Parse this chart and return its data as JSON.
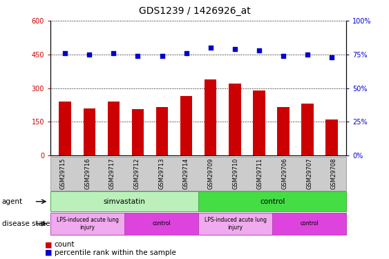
{
  "title": "GDS1239 / 1426926_at",
  "samples": [
    "GSM29715",
    "GSM29716",
    "GSM29717",
    "GSM29712",
    "GSM29713",
    "GSM29714",
    "GSM29709",
    "GSM29710",
    "GSM29711",
    "GSM29706",
    "GSM29707",
    "GSM29708"
  ],
  "counts": [
    240,
    210,
    240,
    205,
    215,
    265,
    340,
    320,
    290,
    215,
    230,
    160
  ],
  "percentiles": [
    76,
    75,
    76,
    74,
    74,
    76,
    80,
    79,
    78,
    74,
    75,
    73
  ],
  "bar_color": "#cc0000",
  "dot_color": "#0000cc",
  "ylim_left": [
    0,
    600
  ],
  "ylim_right": [
    0,
    100
  ],
  "yticks_left": [
    0,
    150,
    300,
    450,
    600
  ],
  "yticks_right": [
    0,
    25,
    50,
    75,
    100
  ],
  "ytick_labels_left": [
    "0",
    "150",
    "300",
    "450",
    "600"
  ],
  "ytick_labels_right": [
    "0%",
    "25%",
    "50%",
    "75%",
    "100%"
  ],
  "agent_groups": [
    {
      "label": "simvastatin",
      "start": 0,
      "end": 6,
      "color": "#bbf0bb",
      "border": "#44aa44"
    },
    {
      "label": "control",
      "start": 6,
      "end": 12,
      "color": "#44dd44",
      "border": "#44aa44"
    }
  ],
  "disease_groups": [
    {
      "label": "LPS-induced acute lung\ninjury",
      "start": 0,
      "end": 3,
      "color": "#f0aaee",
      "border": "#bb44bb"
    },
    {
      "label": "control",
      "start": 3,
      "end": 6,
      "color": "#dd44dd",
      "border": "#bb44bb"
    },
    {
      "label": "LPS-induced acute lung\ninjury",
      "start": 6,
      "end": 9,
      "color": "#f0aaee",
      "border": "#bb44bb"
    },
    {
      "label": "control",
      "start": 9,
      "end": 12,
      "color": "#dd44dd",
      "border": "#bb44bb"
    }
  ],
  "agent_label": "agent",
  "disease_label": "disease state",
  "legend_count": "count",
  "legend_percentile": "percentile rank within the sample",
  "tick_label_color_left": "#cc0000",
  "tick_label_color_right": "#0000cc",
  "gray_bg": "#cccccc"
}
